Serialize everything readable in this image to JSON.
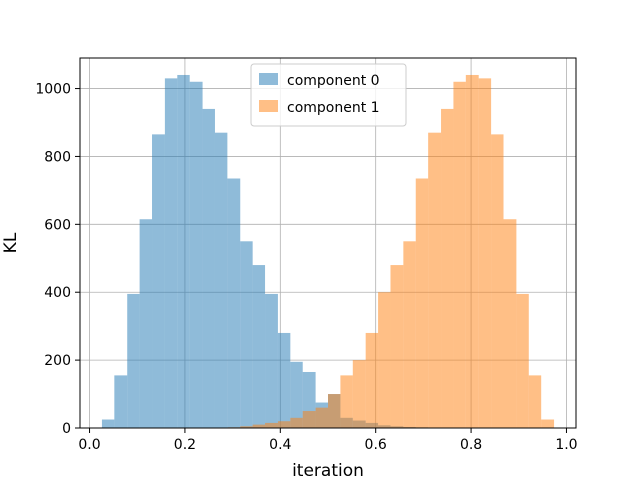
{
  "chart_data": {
    "type": "bar",
    "subtype": "overlapping-histogram",
    "title": "",
    "xlabel": "iteration",
    "ylabel": "KL",
    "xlim": [
      -0.02,
      1.02
    ],
    "ylim": [
      0,
      1090
    ],
    "xticks": [
      0.0,
      0.2,
      0.4,
      0.6,
      0.8,
      1.0
    ],
    "xtick_labels": [
      "0.0",
      "0.2",
      "0.4",
      "0.6",
      "0.8",
      "1.0"
    ],
    "yticks": [
      0,
      200,
      400,
      600,
      800,
      1000
    ],
    "ytick_labels": [
      "0",
      "200",
      "400",
      "600",
      "800",
      "1000"
    ],
    "grid": true,
    "legend_position": "top-center",
    "bar_opacity": 0.5,
    "series": [
      {
        "name": "component 0",
        "color": "#1f77b4",
        "bins": [
          {
            "x0": 0.026,
            "x1": 0.052,
            "count": 25
          },
          {
            "x0": 0.052,
            "x1": 0.079,
            "count": 155
          },
          {
            "x0": 0.079,
            "x1": 0.105,
            "count": 395
          },
          {
            "x0": 0.105,
            "x1": 0.131,
            "count": 615
          },
          {
            "x0": 0.131,
            "x1": 0.158,
            "count": 865
          },
          {
            "x0": 0.158,
            "x1": 0.184,
            "count": 1030
          },
          {
            "x0": 0.184,
            "x1": 0.21,
            "count": 1040
          },
          {
            "x0": 0.21,
            "x1": 0.237,
            "count": 1020
          },
          {
            "x0": 0.237,
            "x1": 0.263,
            "count": 940
          },
          {
            "x0": 0.263,
            "x1": 0.289,
            "count": 870
          },
          {
            "x0": 0.289,
            "x1": 0.316,
            "count": 735
          },
          {
            "x0": 0.316,
            "x1": 0.342,
            "count": 550
          },
          {
            "x0": 0.342,
            "x1": 0.368,
            "count": 480
          },
          {
            "x0": 0.368,
            "x1": 0.395,
            "count": 395
          },
          {
            "x0": 0.395,
            "x1": 0.421,
            "count": 280
          },
          {
            "x0": 0.421,
            "x1": 0.447,
            "count": 195
          },
          {
            "x0": 0.447,
            "x1": 0.474,
            "count": 165
          },
          {
            "x0": 0.474,
            "x1": 0.5,
            "count": 75
          },
          {
            "x0": 0.5,
            "x1": 0.526,
            "count": 100
          },
          {
            "x0": 0.526,
            "x1": 0.552,
            "count": 30
          },
          {
            "x0": 0.552,
            "x1": 0.579,
            "count": 22
          },
          {
            "x0": 0.579,
            "x1": 0.605,
            "count": 15
          },
          {
            "x0": 0.605,
            "x1": 0.631,
            "count": 8
          },
          {
            "x0": 0.631,
            "x1": 0.658,
            "count": 5
          },
          {
            "x0": 0.658,
            "x1": 0.684,
            "count": 3
          },
          {
            "x0": 0.684,
            "x1": 0.71,
            "count": 2
          }
        ]
      },
      {
        "name": "component 1",
        "color": "#ff7f0e",
        "bins": [
          {
            "x0": 0.29,
            "x1": 0.316,
            "count": 2
          },
          {
            "x0": 0.316,
            "x1": 0.342,
            "count": 5
          },
          {
            "x0": 0.342,
            "x1": 0.368,
            "count": 10
          },
          {
            "x0": 0.368,
            "x1": 0.395,
            "count": 15
          },
          {
            "x0": 0.395,
            "x1": 0.421,
            "count": 20
          },
          {
            "x0": 0.421,
            "x1": 0.447,
            "count": 30
          },
          {
            "x0": 0.447,
            "x1": 0.474,
            "count": 50
          },
          {
            "x0": 0.474,
            "x1": 0.5,
            "count": 60
          },
          {
            "x0": 0.5,
            "x1": 0.526,
            "count": 100
          },
          {
            "x0": 0.526,
            "x1": 0.552,
            "count": 155
          },
          {
            "x0": 0.552,
            "x1": 0.579,
            "count": 200
          },
          {
            "x0": 0.579,
            "x1": 0.605,
            "count": 280
          },
          {
            "x0": 0.605,
            "x1": 0.631,
            "count": 400
          },
          {
            "x0": 0.631,
            "x1": 0.658,
            "count": 480
          },
          {
            "x0": 0.658,
            "x1": 0.684,
            "count": 550
          },
          {
            "x0": 0.684,
            "x1": 0.71,
            "count": 735
          },
          {
            "x0": 0.71,
            "x1": 0.737,
            "count": 870
          },
          {
            "x0": 0.737,
            "x1": 0.763,
            "count": 940
          },
          {
            "x0": 0.763,
            "x1": 0.789,
            "count": 1020
          },
          {
            "x0": 0.789,
            "x1": 0.816,
            "count": 1040
          },
          {
            "x0": 0.816,
            "x1": 0.842,
            "count": 1030
          },
          {
            "x0": 0.842,
            "x1": 0.868,
            "count": 865
          },
          {
            "x0": 0.868,
            "x1": 0.895,
            "count": 615
          },
          {
            "x0": 0.895,
            "x1": 0.921,
            "count": 395
          },
          {
            "x0": 0.921,
            "x1": 0.947,
            "count": 155
          },
          {
            "x0": 0.947,
            "x1": 0.974,
            "count": 25
          }
        ]
      }
    ]
  }
}
